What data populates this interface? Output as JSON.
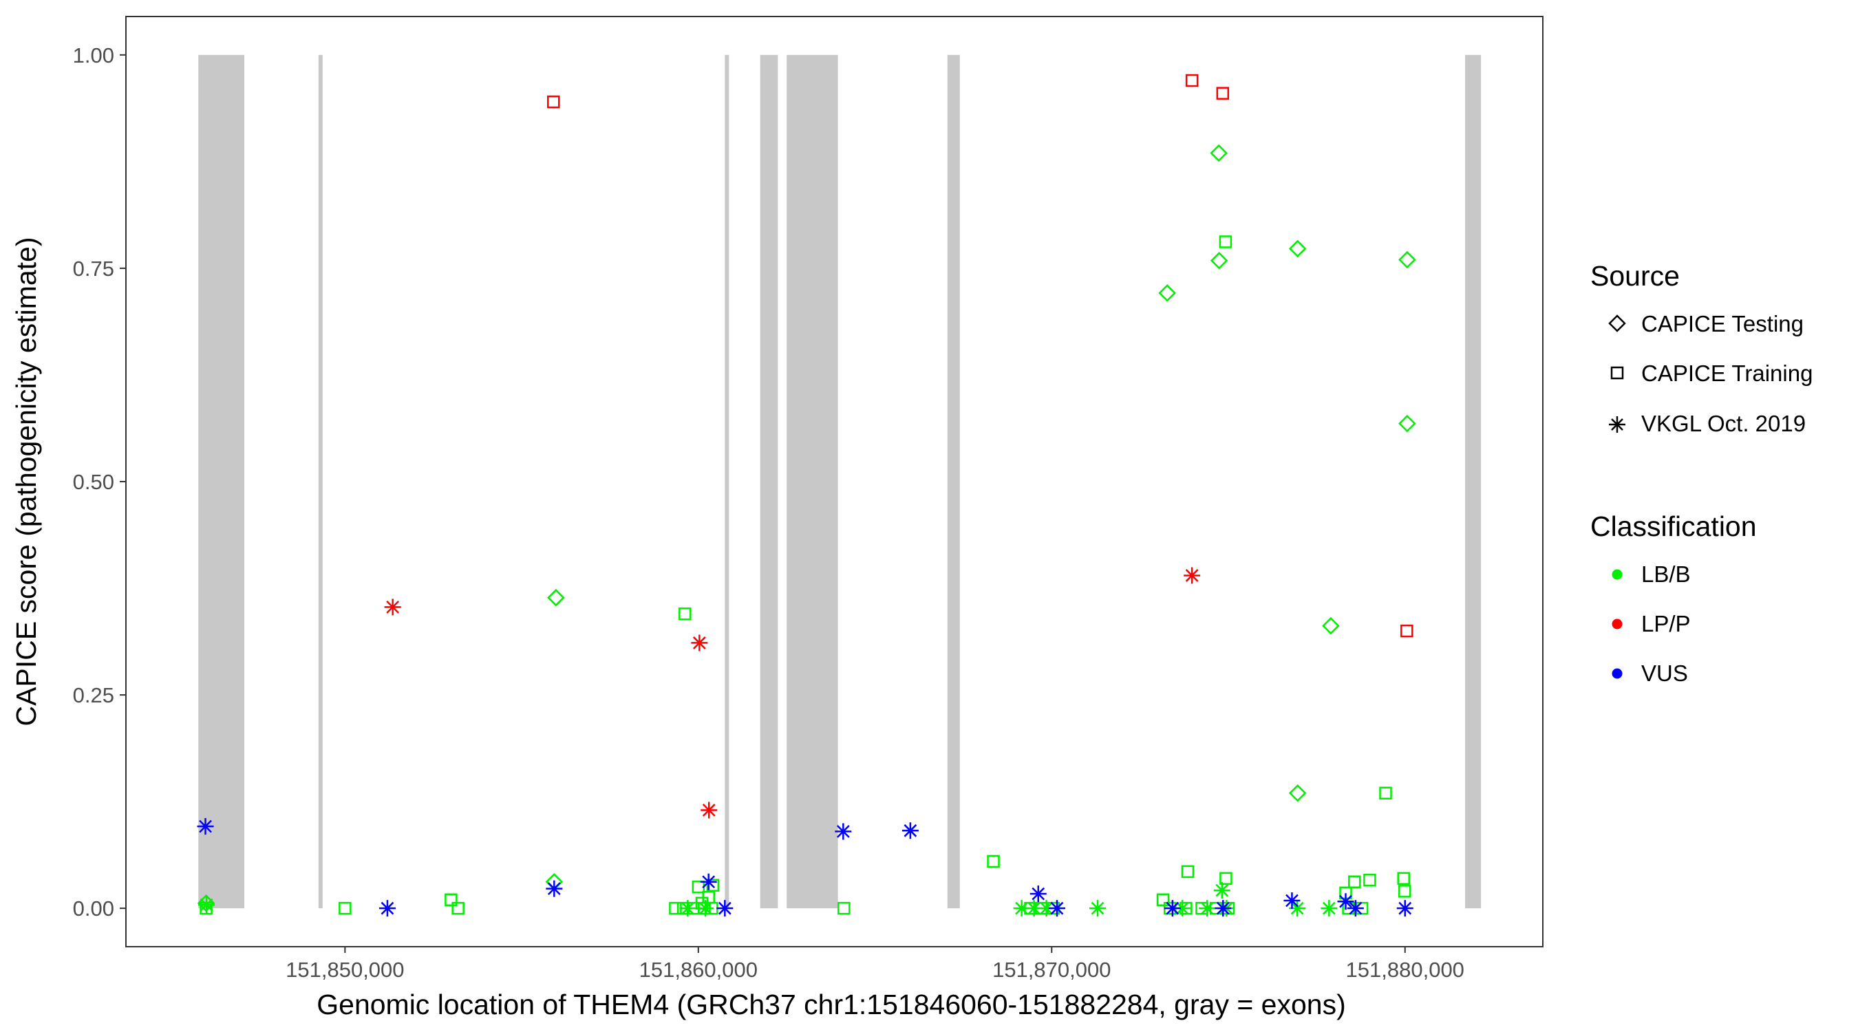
{
  "chart_data": {
    "type": "scatter",
    "xlabel": "Genomic location of THEM4 (GRCh37 chr1:151846060-151882284, gray = exons)",
    "ylabel": "CAPICE score (pathogenicity estimate)",
    "xlim": [
      151843800,
      151883900
    ],
    "ylim": [
      -0.045,
      1.045
    ],
    "x_ticks": [
      151850000,
      151860000,
      151870000,
      151880000
    ],
    "x_tick_labels": [
      "151,850,000",
      "151,860,000",
      "151,870,000",
      "151,880,000"
    ],
    "y_ticks": [
      0,
      0.25,
      0.5,
      0.75,
      1
    ],
    "y_tick_labels": [
      "0.00",
      "0.25",
      "0.50",
      "0.75",
      "1.00"
    ],
    "grid": false,
    "exon_color": "#c8c8c8",
    "exons": [
      [
        151845850,
        151847150
      ],
      [
        151849250,
        151849350
      ],
      [
        151860750,
        151860850
      ],
      [
        151861750,
        151862250
      ],
      [
        151862500,
        151863950
      ],
      [
        151867050,
        151867400
      ],
      [
        151881700,
        151882150
      ]
    ],
    "legend": {
      "source_title": "Source",
      "source_items": [
        {
          "label": "CAPICE Testing",
          "shape": "diamond"
        },
        {
          "label": "CAPICE Training",
          "shape": "square"
        },
        {
          "label": "VKGL Oct. 2019",
          "shape": "asterisk"
        }
      ],
      "class_title": "Classification",
      "class_items": [
        {
          "label": "LB/B",
          "color": "#00ee00"
        },
        {
          "label": "LP/P",
          "color": "#ff0000"
        },
        {
          "label": "VUS",
          "color": "#0000ff"
        }
      ]
    },
    "points": [
      {
        "x": 151855900,
        "y": 0.945,
        "shape": "square",
        "cls": "LP/P"
      },
      {
        "x": 151873970,
        "y": 0.97,
        "shape": "square",
        "cls": "LP/P"
      },
      {
        "x": 151874840,
        "y": 0.955,
        "shape": "square",
        "cls": "LP/P"
      },
      {
        "x": 151880050,
        "y": 0.325,
        "shape": "square",
        "cls": "LP/P"
      },
      {
        "x": 151851350,
        "y": 0.353,
        "shape": "asterisk",
        "cls": "LP/P"
      },
      {
        "x": 151860030,
        "y": 0.311,
        "shape": "asterisk",
        "cls": "LP/P"
      },
      {
        "x": 151860300,
        "y": 0.115,
        "shape": "asterisk",
        "cls": "LP/P"
      },
      {
        "x": 151873970,
        "y": 0.39,
        "shape": "asterisk",
        "cls": "LP/P"
      },
      {
        "x": 151874730,
        "y": 0.885,
        "shape": "diamond",
        "cls": "LB/B"
      },
      {
        "x": 151873270,
        "y": 0.721,
        "shape": "diamond",
        "cls": "LB/B"
      },
      {
        "x": 151874740,
        "y": 0.759,
        "shape": "diamond",
        "cls": "LB/B"
      },
      {
        "x": 151876960,
        "y": 0.773,
        "shape": "diamond",
        "cls": "LB/B"
      },
      {
        "x": 151880060,
        "y": 0.76,
        "shape": "diamond",
        "cls": "LB/B"
      },
      {
        "x": 151880060,
        "y": 0.568,
        "shape": "diamond",
        "cls": "LB/B"
      },
      {
        "x": 151855970,
        "y": 0.364,
        "shape": "diamond",
        "cls": "LB/B"
      },
      {
        "x": 151877900,
        "y": 0.331,
        "shape": "diamond",
        "cls": "LB/B"
      },
      {
        "x": 151876960,
        "y": 0.135,
        "shape": "diamond",
        "cls": "LB/B"
      },
      {
        "x": 151855920,
        "y": 0.031,
        "shape": "diamond",
        "cls": "LB/B"
      },
      {
        "x": 151846070,
        "y": 0.006,
        "shape": "diamond",
        "cls": "LB/B"
      },
      {
        "x": 151874920,
        "y": 0.781,
        "shape": "square",
        "cls": "LB/B"
      },
      {
        "x": 151859620,
        "y": 0.345,
        "shape": "square",
        "cls": "LB/B"
      },
      {
        "x": 151879450,
        "y": 0.135,
        "shape": "square",
        "cls": "LB/B"
      },
      {
        "x": 151868350,
        "y": 0.055,
        "shape": "square",
        "cls": "LB/B"
      },
      {
        "x": 151873850,
        "y": 0.043,
        "shape": "square",
        "cls": "LB/B"
      },
      {
        "x": 151874930,
        "y": 0.035,
        "shape": "square",
        "cls": "LB/B"
      },
      {
        "x": 151879960,
        "y": 0.035,
        "shape": "square",
        "cls": "LB/B"
      },
      {
        "x": 151879000,
        "y": 0.033,
        "shape": "square",
        "cls": "LB/B"
      },
      {
        "x": 151878570,
        "y": 0.031,
        "shape": "square",
        "cls": "LB/B"
      },
      {
        "x": 151860410,
        "y": 0.027,
        "shape": "square",
        "cls": "LB/B"
      },
      {
        "x": 151860000,
        "y": 0.025,
        "shape": "square",
        "cls": "LB/B"
      },
      {
        "x": 151879990,
        "y": 0.02,
        "shape": "square",
        "cls": "LB/B"
      },
      {
        "x": 151878320,
        "y": 0.018,
        "shape": "square",
        "cls": "LB/B"
      },
      {
        "x": 151860290,
        "y": 0.013,
        "shape": "square",
        "cls": "LB/B"
      },
      {
        "x": 151853000,
        "y": 0.01,
        "shape": "square",
        "cls": "LB/B"
      },
      {
        "x": 151873150,
        "y": 0.01,
        "shape": "square",
        "cls": "LB/B"
      },
      {
        "x": 151860100,
        "y": 0.006,
        "shape": "square",
        "cls": "LB/B"
      },
      {
        "x": 151850000,
        "y": 0.0,
        "shape": "square",
        "cls": "LB/B"
      },
      {
        "x": 151853200,
        "y": 0.0,
        "shape": "square",
        "cls": "LB/B"
      },
      {
        "x": 151846070,
        "y": 0.0,
        "shape": "square",
        "cls": "LB/B"
      },
      {
        "x": 151859350,
        "y": 0.0,
        "shape": "square",
        "cls": "LB/B"
      },
      {
        "x": 151859580,
        "y": 0.0,
        "shape": "square",
        "cls": "LB/B"
      },
      {
        "x": 151859850,
        "y": 0.0,
        "shape": "square",
        "cls": "LB/B"
      },
      {
        "x": 151860170,
        "y": 0.0,
        "shape": "square",
        "cls": "LB/B"
      },
      {
        "x": 151860380,
        "y": 0.0,
        "shape": "square",
        "cls": "LB/B"
      },
      {
        "x": 151864120,
        "y": 0.0,
        "shape": "square",
        "cls": "LB/B"
      },
      {
        "x": 151869400,
        "y": 0.0,
        "shape": "square",
        "cls": "LB/B"
      },
      {
        "x": 151869700,
        "y": 0.0,
        "shape": "square",
        "cls": "LB/B"
      },
      {
        "x": 151870050,
        "y": 0.0,
        "shape": "square",
        "cls": "LB/B"
      },
      {
        "x": 151873350,
        "y": 0.0,
        "shape": "square",
        "cls": "LB/B"
      },
      {
        "x": 151873800,
        "y": 0.0,
        "shape": "square",
        "cls": "LB/B"
      },
      {
        "x": 151874250,
        "y": 0.0,
        "shape": "square",
        "cls": "LB/B"
      },
      {
        "x": 151874650,
        "y": 0.0,
        "shape": "square",
        "cls": "LB/B"
      },
      {
        "x": 151875000,
        "y": 0.0,
        "shape": "square",
        "cls": "LB/B"
      },
      {
        "x": 151878400,
        "y": 0.0,
        "shape": "square",
        "cls": "LB/B"
      },
      {
        "x": 151878780,
        "y": 0.0,
        "shape": "square",
        "cls": "LB/B"
      },
      {
        "x": 151846080,
        "y": 0.004,
        "shape": "asterisk",
        "cls": "LB/B"
      },
      {
        "x": 151874820,
        "y": 0.021,
        "shape": "asterisk",
        "cls": "LB/B"
      },
      {
        "x": 151859700,
        "y": 0.0,
        "shape": "asterisk",
        "cls": "LB/B"
      },
      {
        "x": 151860200,
        "y": 0.0,
        "shape": "asterisk",
        "cls": "LB/B"
      },
      {
        "x": 151869150,
        "y": 0.0,
        "shape": "asterisk",
        "cls": "LB/B"
      },
      {
        "x": 151869500,
        "y": 0.0,
        "shape": "asterisk",
        "cls": "LB/B"
      },
      {
        "x": 151869850,
        "y": 0.0,
        "shape": "asterisk",
        "cls": "LB/B"
      },
      {
        "x": 151871300,
        "y": 0.0,
        "shape": "asterisk",
        "cls": "LB/B"
      },
      {
        "x": 151873700,
        "y": 0.0,
        "shape": "asterisk",
        "cls": "LB/B"
      },
      {
        "x": 151874400,
        "y": 0.0,
        "shape": "asterisk",
        "cls": "LB/B"
      },
      {
        "x": 151874950,
        "y": 0.0,
        "shape": "asterisk",
        "cls": "LB/B"
      },
      {
        "x": 151876950,
        "y": 0.0,
        "shape": "asterisk",
        "cls": "LB/B"
      },
      {
        "x": 151877850,
        "y": 0.0,
        "shape": "asterisk",
        "cls": "LB/B"
      },
      {
        "x": 151846050,
        "y": 0.096,
        "shape": "asterisk",
        "cls": "VUS"
      },
      {
        "x": 151851200,
        "y": 0.0,
        "shape": "asterisk",
        "cls": "VUS"
      },
      {
        "x": 151855920,
        "y": 0.023,
        "shape": "asterisk",
        "cls": "VUS"
      },
      {
        "x": 151860290,
        "y": 0.031,
        "shape": "asterisk",
        "cls": "VUS"
      },
      {
        "x": 151860750,
        "y": 0.0,
        "shape": "asterisk",
        "cls": "VUS"
      },
      {
        "x": 151864100,
        "y": 0.09,
        "shape": "asterisk",
        "cls": "VUS"
      },
      {
        "x": 151866000,
        "y": 0.091,
        "shape": "asterisk",
        "cls": "VUS"
      },
      {
        "x": 151869620,
        "y": 0.017,
        "shape": "asterisk",
        "cls": "VUS"
      },
      {
        "x": 151870150,
        "y": 0.0,
        "shape": "asterisk",
        "cls": "VUS"
      },
      {
        "x": 151873420,
        "y": 0.0,
        "shape": "asterisk",
        "cls": "VUS"
      },
      {
        "x": 151874850,
        "y": 0.0,
        "shape": "asterisk",
        "cls": "VUS"
      },
      {
        "x": 151876800,
        "y": 0.009,
        "shape": "asterisk",
        "cls": "VUS"
      },
      {
        "x": 151878320,
        "y": 0.008,
        "shape": "asterisk",
        "cls": "VUS"
      },
      {
        "x": 151878600,
        "y": 0.0,
        "shape": "asterisk",
        "cls": "VUS"
      },
      {
        "x": 151880000,
        "y": 0.0,
        "shape": "asterisk",
        "cls": "VUS"
      }
    ]
  }
}
